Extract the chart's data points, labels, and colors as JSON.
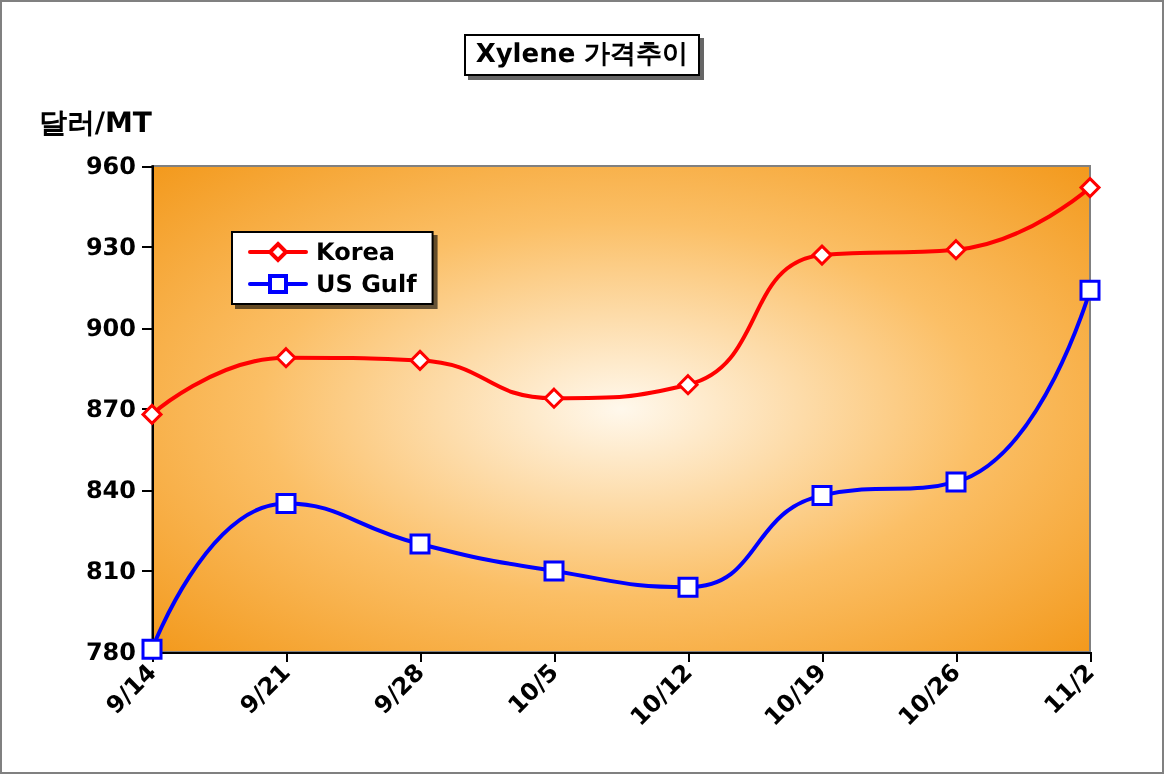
{
  "chart_data": {
    "type": "line",
    "title": "Xylene 가격추이",
    "ylabel": "달러/MT",
    "categories": [
      "9/14",
      "9/21",
      "9/28",
      "10/5",
      "10/12",
      "10/19",
      "10/26",
      "11/2"
    ],
    "series": [
      {
        "name": "Korea",
        "color": "#ff0000",
        "marker": "diamond",
        "values": [
          868,
          889,
          888,
          874,
          879,
          927,
          929,
          952
        ]
      },
      {
        "name": "US Gulf",
        "color": "#0000ff",
        "marker": "square",
        "values": [
          781,
          835,
          820,
          810,
          804,
          838,
          843,
          914
        ]
      }
    ],
    "ylim": [
      780,
      960
    ],
    "yticks": [
      780,
      810,
      840,
      870,
      900,
      930,
      960
    ],
    "grid": false,
    "legend": "top left"
  }
}
